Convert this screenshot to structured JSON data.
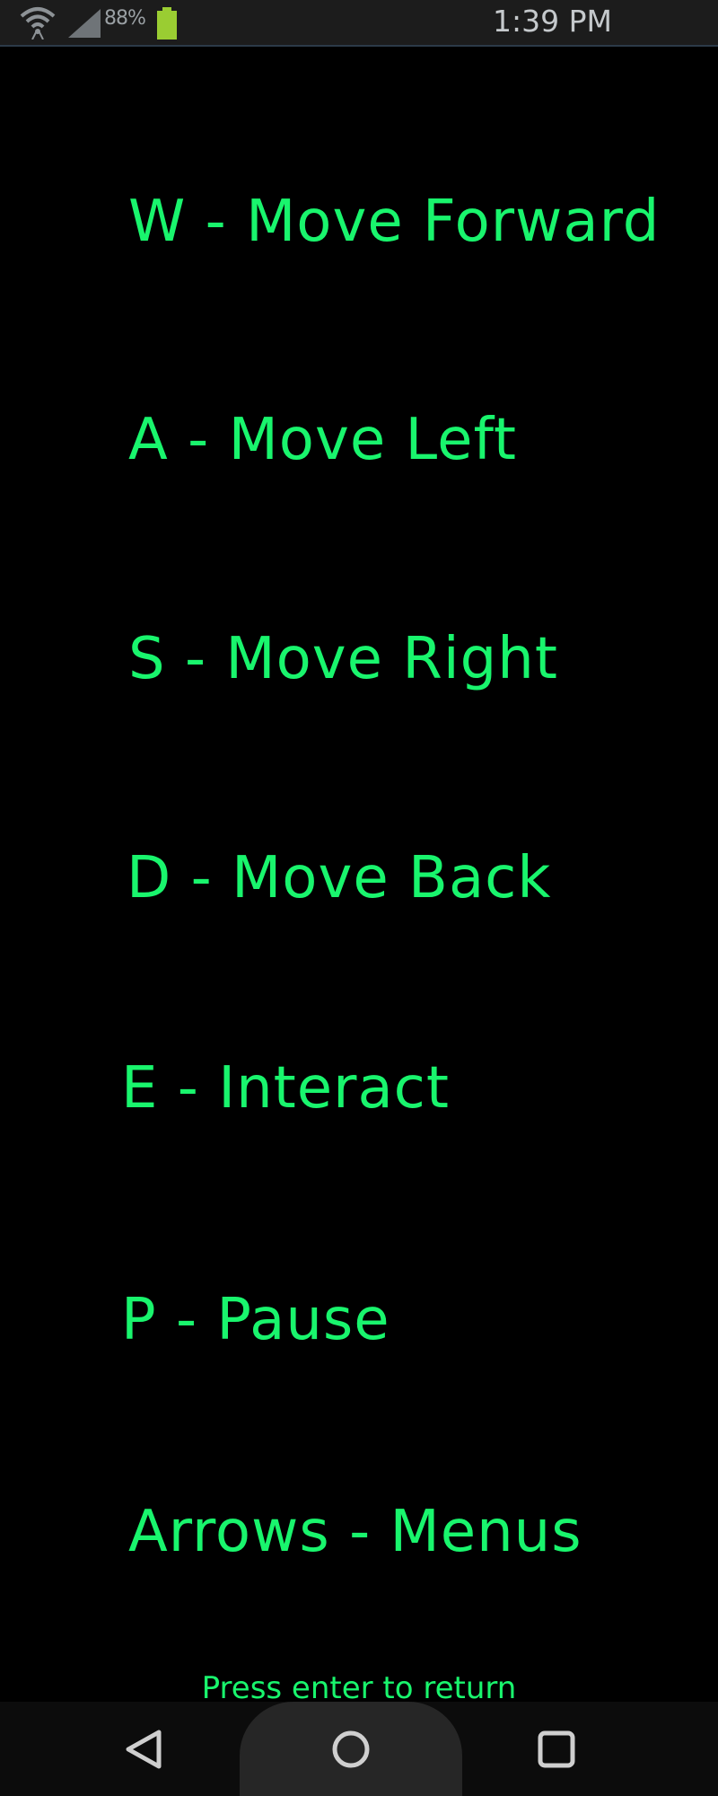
{
  "status_bar": {
    "battery_percent": "88%",
    "time": "1:39 PM",
    "icons": [
      "wifi-icon",
      "signal-icon",
      "battery-icon"
    ],
    "battery_level": 0.88
  },
  "controls": [
    "W - Move Forward",
    "A - Move Left",
    "S - Move Right",
    "D - Move Back",
    "E - Interact",
    "P - Pause",
    "Arrows - Menus"
  ],
  "hint": "Press enter to return",
  "nav_bar": {
    "icons": [
      "back-icon",
      "home-icon",
      "recents-icon"
    ]
  },
  "colors": {
    "background": "#000000",
    "text_green": "#19f56d",
    "status_bar": "#1c1c1c",
    "nav_bar": "#0c0c0c"
  }
}
